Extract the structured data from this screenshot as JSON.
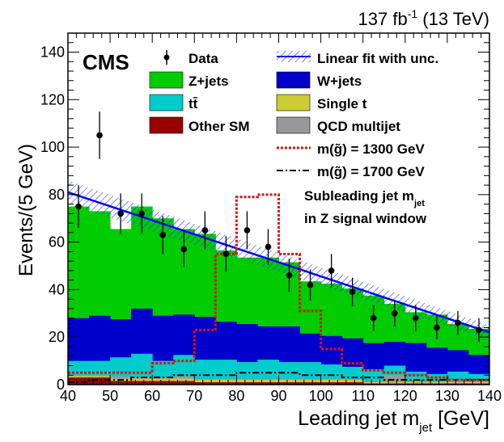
{
  "chart_data": {
    "type": "bar",
    "stacked": true,
    "lumi_label": "137 fb",
    "lumi_sup": "-1",
    "lumi_suffix": " (13 TeV)",
    "cms_label": "CMS",
    "annotation_line1": "Subleading jet m",
    "annotation_line1_sub": "jet",
    "annotation_line2": "in Z signal window",
    "xlabel": "Leading jet m",
    "xlabel_sub": "jet",
    "xlabel_unit": " [GeV]",
    "ylabel": "Events/(5 GeV)",
    "xlim": [
      40,
      140
    ],
    "ylim": [
      0,
      148
    ],
    "xticks": [
      40,
      50,
      60,
      70,
      80,
      90,
      100,
      110,
      120,
      130,
      140
    ],
    "yticks": [
      0,
      20,
      40,
      60,
      80,
      100,
      120,
      140
    ],
    "bin_edges": [
      40,
      45,
      50,
      55,
      60,
      65,
      70,
      75,
      80,
      85,
      90,
      95,
      100,
      105,
      110,
      115,
      120,
      125,
      130,
      135,
      140
    ],
    "colors": {
      "zjets": "#00cc00",
      "wjets": "#0000cc",
      "ttbar": "#00cccc",
      "single_t": "#cccc33",
      "other_sm": "#990000",
      "qcd": "#999999",
      "fit": "#0000ff",
      "sig1300": "#dd1111",
      "data": "#000000"
    },
    "legend": {
      "data": "Data",
      "fit": "Linear fit with unc.",
      "zjets": "Z+jets",
      "wjets": "W+jets",
      "ttbar": "tt̄",
      "single_t": "Single t",
      "other_sm": "Other SM",
      "qcd": "QCD multijet",
      "sig1300": "m(g̃) = 1300 GeV",
      "sig1700": "m(g̃) = 1700 GeV"
    },
    "stack_order": [
      "other_sm",
      "single_t",
      "qcd",
      "ttbar",
      "wjets",
      "zjets"
    ],
    "series": [
      {
        "key": "other_sm",
        "values": [
          3,
          3,
          1.5,
          1.5,
          1.5,
          1.5,
          1,
          1,
          1,
          1,
          1,
          1,
          1,
          1,
          0.5,
          0.5,
          0.5,
          0.5,
          0.5,
          0.5
        ]
      },
      {
        "key": "single_t",
        "values": [
          0.5,
          0.5,
          1,
          1,
          1,
          1,
          1,
          1,
          1,
          1,
          1,
          1,
          1,
          1,
          0.5,
          0.5,
          0.5,
          0.5,
          0.5,
          0.5
        ]
      },
      {
        "key": "qcd",
        "values": [
          0.5,
          0.5,
          1,
          0.5,
          0.5,
          1,
          0.5,
          0.5,
          0.5,
          0.5,
          0.5,
          0.5,
          0.5,
          0.5,
          0.5,
          3,
          0.5,
          0.5,
          0.5,
          0.5
        ]
      },
      {
        "key": "ttbar",
        "values": [
          6,
          6,
          8,
          10,
          7,
          9,
          8,
          8,
          7,
          8,
          7,
          7,
          6,
          5,
          5,
          4,
          4,
          3,
          4,
          3
        ]
      },
      {
        "key": "wjets",
        "values": [
          18,
          19,
          16,
          19,
          19,
          17,
          18,
          16,
          16,
          14,
          15,
          12,
          12,
          12,
          11,
          10,
          12,
          11,
          9,
          8
        ]
      },
      {
        "key": "zjets",
        "values": [
          47,
          44,
          38,
          43,
          41,
          36,
          35,
          30,
          28,
          29,
          27,
          22,
          22,
          21,
          20,
          16,
          13,
          14,
          11,
          11
        ]
      }
    ],
    "signal_1300": [
      5,
      5,
      5,
      5,
      9,
      10,
      23,
      55,
      79,
      80,
      55,
      31,
      15,
      9,
      6,
      5,
      4,
      3,
      2,
      2
    ],
    "signal_1700": [
      1,
      2,
      2,
      3,
      3,
      4,
      4,
      4,
      5,
      5,
      5,
      4,
      4,
      3,
      3,
      2,
      2,
      2,
      2,
      2
    ],
    "data_points": [
      {
        "x": 42.5,
        "y": 75,
        "err": 9
      },
      {
        "x": 47.5,
        "y": 105,
        "err": 10
      },
      {
        "x": 52.5,
        "y": 72,
        "err": 8.5
      },
      {
        "x": 57.5,
        "y": 72,
        "err": 8.5
      },
      {
        "x": 62.5,
        "y": 63,
        "err": 8
      },
      {
        "x": 67.5,
        "y": 57,
        "err": 7.5
      },
      {
        "x": 72.5,
        "y": 65,
        "err": 8
      },
      {
        "x": 77.5,
        "y": 55,
        "err": 7.5
      },
      {
        "x": 82.5,
        "y": 65,
        "err": 8
      },
      {
        "x": 87.5,
        "y": 58,
        "err": 7.5
      },
      {
        "x": 92.5,
        "y": 46,
        "err": 7
      },
      {
        "x": 97.5,
        "y": 42,
        "err": 6.5
      },
      {
        "x": 102.5,
        "y": 48,
        "err": 7
      },
      {
        "x": 107.5,
        "y": 39,
        "err": 6
      },
      {
        "x": 112.5,
        "y": 28,
        "err": 5.5
      },
      {
        "x": 117.5,
        "y": 30,
        "err": 5.5
      },
      {
        "x": 122.5,
        "y": 28,
        "err": 5.5
      },
      {
        "x": 127.5,
        "y": 24,
        "err": 5
      },
      {
        "x": 132.5,
        "y": 26,
        "err": 5
      },
      {
        "x": 137.5,
        "y": 23,
        "err": 5
      }
    ],
    "fit": {
      "x0": 40,
      "y0": 81,
      "x1": 140,
      "y1": 22,
      "unc0": 5,
      "unc1": 3
    }
  }
}
